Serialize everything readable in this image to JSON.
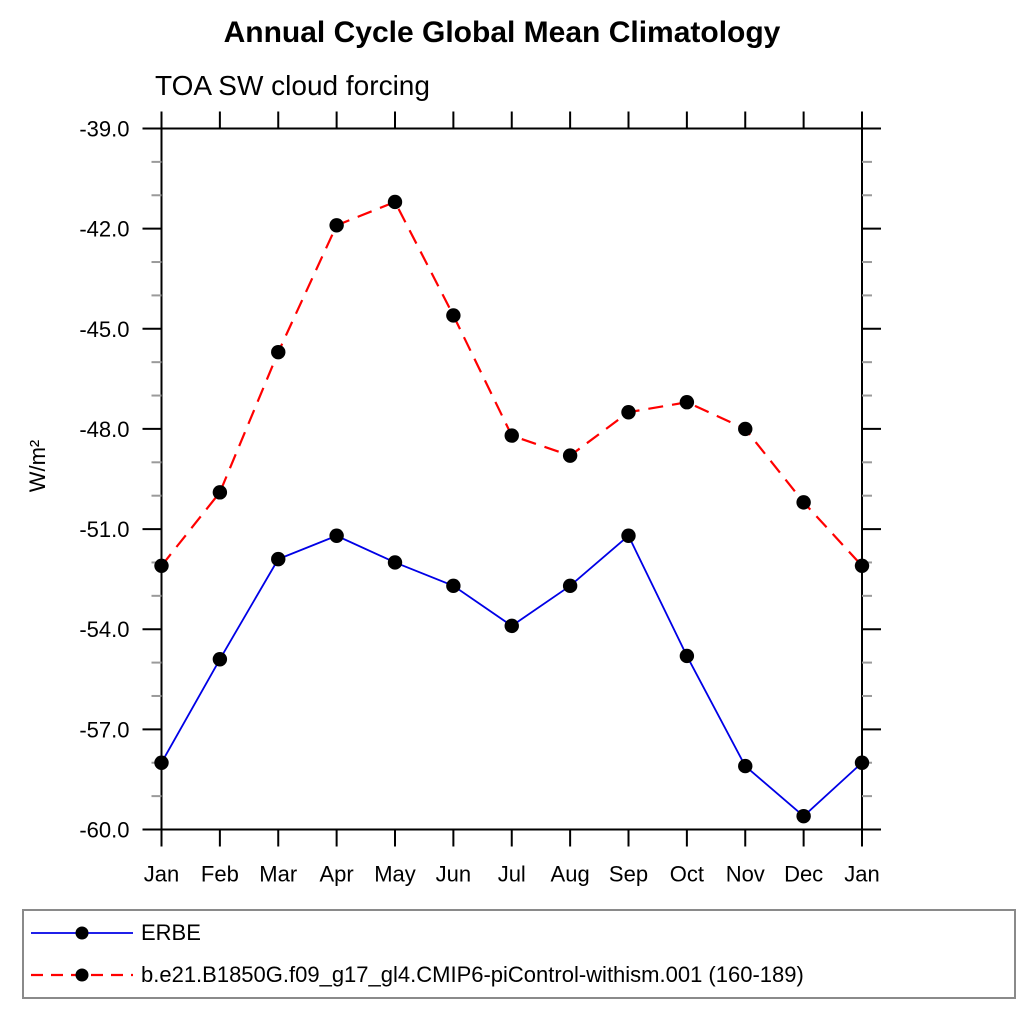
{
  "title": "Annual Cycle Global Mean Climatology",
  "subtitle": "TOA SW cloud forcing",
  "ylabel": "W/m²",
  "chart_data": {
    "type": "line",
    "x_categories": [
      "Jan",
      "Feb",
      "Mar",
      "Apr",
      "May",
      "Jun",
      "Jul",
      "Aug",
      "Sep",
      "Oct",
      "Nov",
      "Dec",
      "Jan"
    ],
    "ylim": [
      -60.0,
      -39.0
    ],
    "y_major_ticks": [
      -39.0,
      -42.0,
      -45.0,
      -48.0,
      -51.0,
      -54.0,
      -57.0,
      -60.0
    ],
    "y_minor_step": 1.0,
    "grid": "off",
    "legend_position": "bottom",
    "series": [
      {
        "name": "ERBE",
        "color": "#0000e6",
        "style": "solid",
        "marker": "circle",
        "marker_color": "#000000",
        "values": [
          -58.0,
          -54.9,
          -51.9,
          -51.2,
          -52.0,
          -52.7,
          -53.9,
          -52.7,
          -51.2,
          -54.8,
          -58.1,
          -59.6,
          -58.0
        ]
      },
      {
        "name": "b.e21.B1850G.f09_g17_gl4.CMIP6-piControl-withism.001 (160-189)",
        "color": "#ff0000",
        "style": "dashed",
        "marker": "circle",
        "marker_color": "#000000",
        "values": [
          -52.1,
          -49.9,
          -45.7,
          -41.9,
          -41.2,
          -44.6,
          -48.2,
          -48.8,
          -47.5,
          -47.2,
          -48.0,
          -50.2,
          -52.1
        ]
      }
    ],
    "colors": {
      "axis": "#000000",
      "minor_tick": "#9a9a9a",
      "marker": "#000000",
      "legend_border": "#8a8a8a"
    }
  }
}
